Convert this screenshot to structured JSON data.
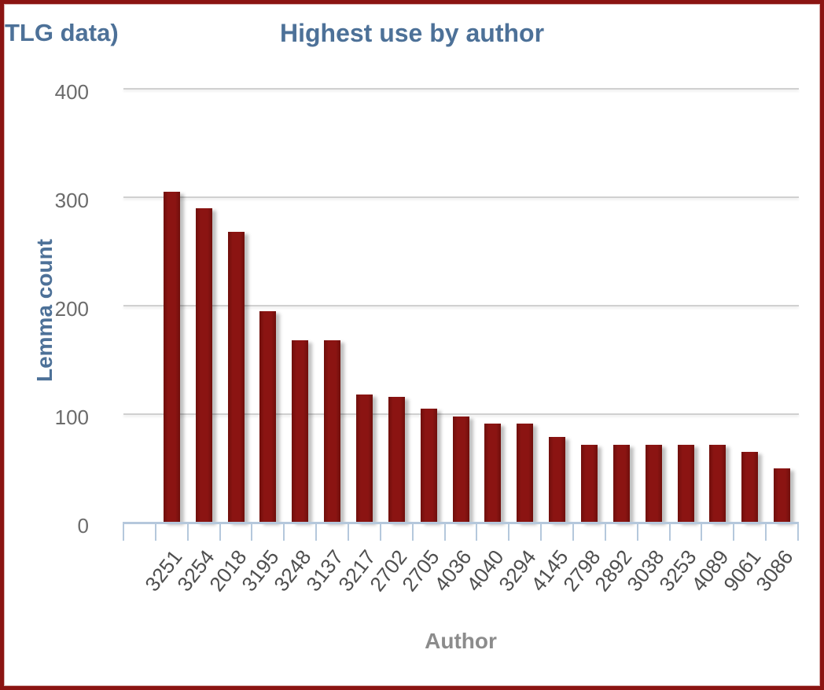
{
  "header": {
    "left_text": "TLG data)"
  },
  "chart_data": {
    "type": "bar",
    "title": "Highest use by author",
    "xlabel": "Author",
    "ylabel": "Lemma count",
    "categories": [
      "3251",
      "3254",
      "2018",
      "3195",
      "3248",
      "3137",
      "3217",
      "2702",
      "2705",
      "4036",
      "4040",
      "3294",
      "4145",
      "2798",
      "2892",
      "3038",
      "3253",
      "4089",
      "9061",
      "3086"
    ],
    "values": [
      305,
      290,
      268,
      195,
      168,
      168,
      118,
      116,
      105,
      98,
      91,
      91,
      79,
      72,
      72,
      72,
      72,
      72,
      65,
      50
    ],
    "ylim": [
      0,
      400
    ],
    "yticks": [
      0,
      100,
      200,
      300,
      400
    ],
    "grid": true,
    "legend": "none",
    "bar_color": "#8B1412"
  },
  "colors": {
    "frame": "#8B1412",
    "title": "#4D7198",
    "bar": "#8B1412",
    "grid": "#D0D0D0",
    "axis": "#B5C8DC",
    "ytick": "#6B6B6B",
    "xtick": "#4F4F4F",
    "xtitle": "#8C8C8C"
  }
}
